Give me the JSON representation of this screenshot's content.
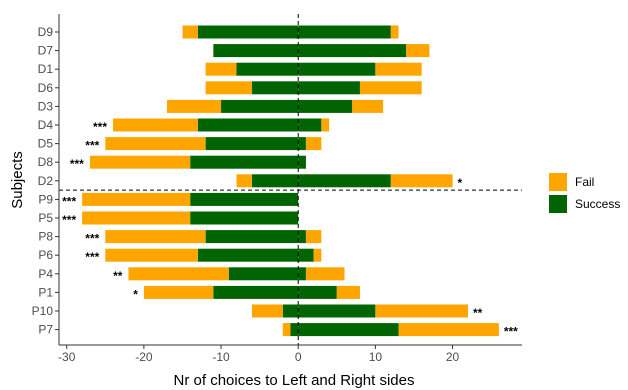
{
  "chart_data": {
    "type": "bar",
    "orientation": "horizontal",
    "stacked": "diverging",
    "xlabel": "Nr of choices to Left and Right sides",
    "ylabel": "Subjects",
    "xlim": [
      -31,
      29
    ],
    "x_ticks": [
      -30,
      -20,
      -10,
      0,
      10,
      20
    ],
    "grid": false,
    "legend_position": "right",
    "colors": {
      "Fail": "#FFA500",
      "Success": "#006400"
    },
    "series": [
      {
        "name": "Fail",
        "color": "#FFA500"
      },
      {
        "name": "Success",
        "color": "#006400"
      }
    ],
    "categories": [
      "D9",
      "D7",
      "D1",
      "D6",
      "D3",
      "D4",
      "D5",
      "D8",
      "D2",
      "P9",
      "P5",
      "P8",
      "P6",
      "P4",
      "P1",
      "P10",
      "P7"
    ],
    "rows": [
      {
        "subject": "D9",
        "left_success": 13,
        "left_fail": 2,
        "right_success": 12,
        "right_fail": 1,
        "left_sig": "",
        "right_sig": ""
      },
      {
        "subject": "D7",
        "left_success": 11,
        "left_fail": 0,
        "right_success": 14,
        "right_fail": 3,
        "left_sig": "",
        "right_sig": ""
      },
      {
        "subject": "D1",
        "left_success": 8,
        "left_fail": 4,
        "right_success": 10,
        "right_fail": 6,
        "left_sig": "",
        "right_sig": ""
      },
      {
        "subject": "D6",
        "left_success": 6,
        "left_fail": 6,
        "right_success": 8,
        "right_fail": 8,
        "left_sig": "",
        "right_sig": ""
      },
      {
        "subject": "D3",
        "left_success": 10,
        "left_fail": 7,
        "right_success": 7,
        "right_fail": 4,
        "left_sig": "",
        "right_sig": ""
      },
      {
        "subject": "D4",
        "left_success": 13,
        "left_fail": 11,
        "right_success": 3,
        "right_fail": 1,
        "left_sig": "***",
        "right_sig": ""
      },
      {
        "subject": "D5",
        "left_success": 12,
        "left_fail": 13,
        "right_success": 1,
        "right_fail": 2,
        "left_sig": "***",
        "right_sig": ""
      },
      {
        "subject": "D8",
        "left_success": 14,
        "left_fail": 13,
        "right_success": 1,
        "right_fail": 0,
        "left_sig": "***",
        "right_sig": ""
      },
      {
        "subject": "D2",
        "left_success": 6,
        "left_fail": 2,
        "right_success": 12,
        "right_fail": 8,
        "left_sig": "",
        "right_sig": "*"
      },
      {
        "subject": "P9",
        "left_success": 14,
        "left_fail": 14,
        "right_success": 0,
        "right_fail": 0,
        "left_sig": "***",
        "right_sig": ""
      },
      {
        "subject": "P5",
        "left_success": 14,
        "left_fail": 14,
        "right_success": 0,
        "right_fail": 0,
        "left_sig": "***",
        "right_sig": ""
      },
      {
        "subject": "P8",
        "left_success": 12,
        "left_fail": 13,
        "right_success": 1,
        "right_fail": 2,
        "left_sig": "***",
        "right_sig": ""
      },
      {
        "subject": "P6",
        "left_success": 13,
        "left_fail": 12,
        "right_success": 2,
        "right_fail": 1,
        "left_sig": "***",
        "right_sig": ""
      },
      {
        "subject": "P4",
        "left_success": 9,
        "left_fail": 13,
        "right_success": 1,
        "right_fail": 5,
        "left_sig": "**",
        "right_sig": ""
      },
      {
        "subject": "P1",
        "left_success": 11,
        "left_fail": 9,
        "right_success": 5,
        "right_fail": 3,
        "left_sig": "*",
        "right_sig": ""
      },
      {
        "subject": "P10",
        "left_success": 2,
        "left_fail": 4,
        "right_success": 10,
        "right_fail": 12,
        "left_sig": "",
        "right_sig": "**"
      },
      {
        "subject": "P7",
        "left_success": 1,
        "left_fail": 1,
        "right_success": 13,
        "right_fail": 13,
        "left_sig": "",
        "right_sig": "***"
      }
    ],
    "reference_lines": [
      {
        "axis": "x",
        "value": 0,
        "style": "dashed"
      },
      {
        "axis": "y",
        "between": [
          "D2",
          "P9"
        ],
        "style": "dashed"
      }
    ]
  }
}
